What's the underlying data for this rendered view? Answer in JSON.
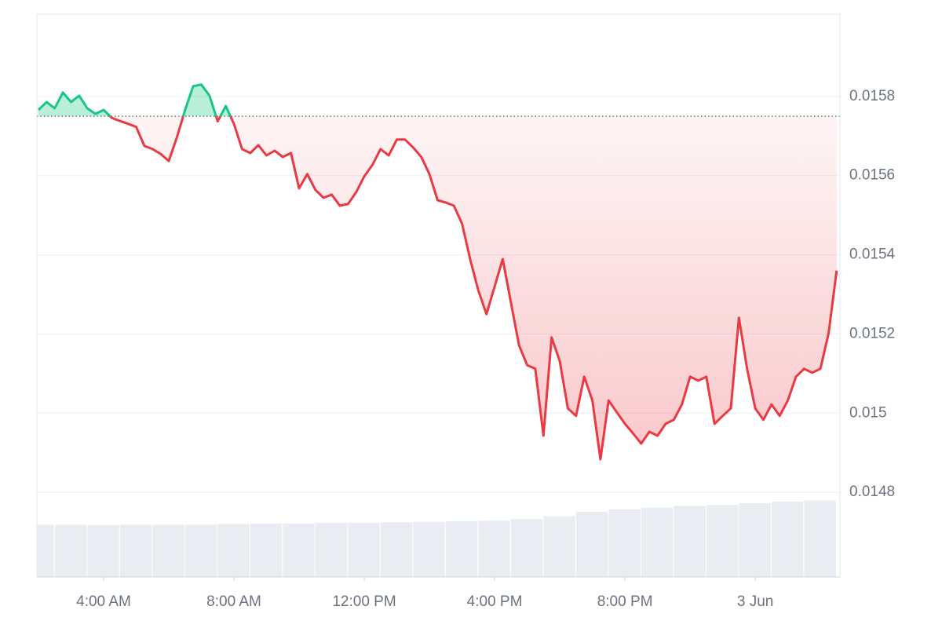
{
  "chart_data": {
    "type": "line",
    "x": [
      2,
      2.25,
      2.5,
      2.75,
      3,
      3.25,
      3.5,
      3.75,
      4,
      4.25,
      4.5,
      4.75,
      5,
      5.25,
      5.5,
      5.75,
      6,
      6.25,
      6.5,
      6.75,
      7,
      7.25,
      7.5,
      7.75,
      8,
      8.25,
      8.5,
      8.75,
      9,
      9.25,
      9.5,
      9.75,
      10,
      10.25,
      10.5,
      10.75,
      11,
      11.25,
      11.5,
      11.75,
      12,
      12.25,
      12.5,
      12.75,
      13,
      13.25,
      13.5,
      13.75,
      14,
      14.25,
      14.5,
      14.75,
      15,
      15.25,
      15.5,
      15.75,
      16,
      16.25,
      16.5,
      16.75,
      17,
      17.25,
      17.5,
      17.75,
      18,
      18.25,
      18.5,
      18.75,
      19,
      19.25,
      19.5,
      19.75,
      20,
      20.25,
      20.5,
      20.75,
      21,
      21.25,
      21.5,
      21.75,
      22,
      22.25,
      22.5,
      22.75,
      23,
      23.25,
      23.5,
      23.75,
      24,
      24.25,
      24.5,
      24.75,
      25,
      25.25,
      25.5,
      25.75,
      26,
      26.25,
      26.5
    ],
    "values": [
      0.015766,
      0.015786,
      0.01577,
      0.01581,
      0.015786,
      0.015802,
      0.01577,
      0.015756,
      0.015766,
      0.015746,
      0.015738,
      0.015731,
      0.015723,
      0.015675,
      0.015667,
      0.015655,
      0.015637,
      0.015697,
      0.015766,
      0.015826,
      0.01583,
      0.015802,
      0.015737,
      0.015776,
      0.015731,
      0.015667,
      0.015657,
      0.015677,
      0.015651,
      0.015663,
      0.015647,
      0.015657,
      0.015568,
      0.015604,
      0.015564,
      0.015544,
      0.015552,
      0.015524,
      0.015528,
      0.015558,
      0.015598,
      0.015627,
      0.015667,
      0.015651,
      0.015691,
      0.015691,
      0.015671,
      0.015647,
      0.015604,
      0.015538,
      0.015532,
      0.015524,
      0.015479,
      0.015389,
      0.01531,
      0.01525,
      0.01532,
      0.015389,
      0.01528,
      0.015171,
      0.015121,
      0.015112,
      0.014943,
      0.015191,
      0.015131,
      0.015012,
      0.014993,
      0.015092,
      0.015032,
      0.014883,
      0.015032,
      0.015002,
      0.014973,
      0.014949,
      0.014923,
      0.014953,
      0.014943,
      0.014973,
      0.014983,
      0.015022,
      0.015092,
      0.015082,
      0.015092,
      0.014973,
      0.014993,
      0.015012,
      0.015241,
      0.015112,
      0.015012,
      0.014983,
      0.015022,
      0.014993,
      0.015032,
      0.015092,
      0.015112,
      0.015102,
      0.015112,
      0.015201,
      0.01536
    ],
    "color": "#ea3943",
    "up_color": "#16c784",
    "baseline": 0.01575,
    "volume": {
      "x": [
        2,
        3,
        4,
        5,
        6,
        7,
        8,
        9,
        10,
        11,
        12,
        13,
        14,
        15,
        16,
        17,
        18,
        19,
        20,
        21,
        22,
        23,
        24,
        25,
        26
      ],
      "values": [
        9.3,
        9.3,
        9.2,
        9.3,
        9.3,
        9.3,
        9.4,
        9.5,
        9.5,
        9.6,
        9.6,
        9.7,
        9.8,
        9.9,
        10.0,
        10.3,
        10.8,
        11.6,
        12.0,
        12.3,
        12.6,
        12.8,
        13.1,
        13.4,
        13.6
      ],
      "axis": "y2",
      "color": "#e9edf2"
    },
    "xlim": [
      1.952,
      26.6
    ],
    "xticks": [
      {
        "value": 4,
        "label": "4:00 AM"
      },
      {
        "value": 8,
        "label": "8:00 AM"
      },
      {
        "value": 12,
        "label": "12:00 PM"
      },
      {
        "value": 16,
        "label": "4:00 PM"
      },
      {
        "value": 20,
        "label": "8:00 PM"
      },
      {
        "value": 24,
        "label": "3 Jun"
      }
    ],
    "ylim": [
      0.014586,
      0.016008
    ],
    "yticks": [
      0.0148,
      0.015,
      0.0152,
      0.0154,
      0.0156,
      0.0158
    ],
    "y2lim": [
      0,
      100
    ],
    "grid": true
  }
}
